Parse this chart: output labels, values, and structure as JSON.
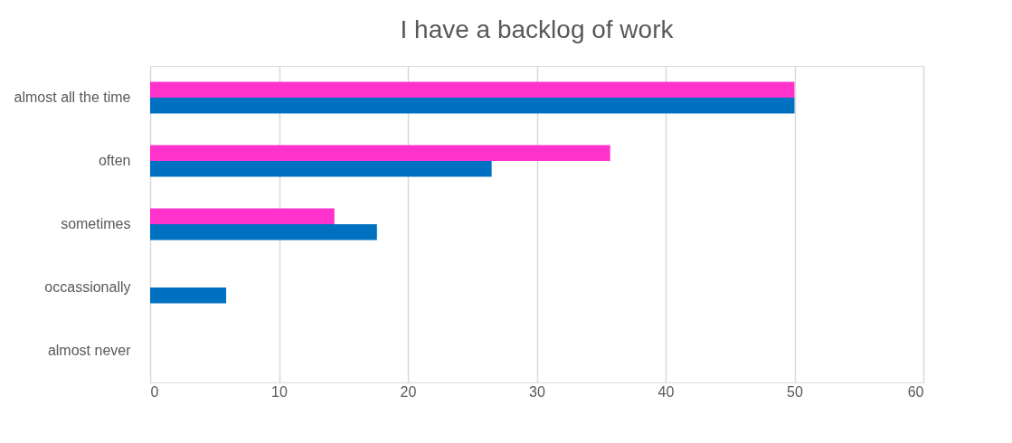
{
  "chart_data": {
    "type": "bar",
    "orientation": "horizontal",
    "title": "I have a backlog of work",
    "categories": [
      "almost all the time",
      "often",
      "sometimes",
      "occassionally",
      "almost never"
    ],
    "series": [
      {
        "color": "#ff33cc",
        "values": [
          50,
          35.7,
          14.3,
          0,
          0
        ]
      },
      {
        "color": "#0070c0",
        "values": [
          50,
          26.5,
          17.6,
          5.9,
          0
        ]
      }
    ],
    "xlim": [
      0,
      60
    ],
    "xticks": [
      0,
      10,
      20,
      30,
      40,
      50,
      60
    ],
    "grid": "x",
    "legend": false
  }
}
